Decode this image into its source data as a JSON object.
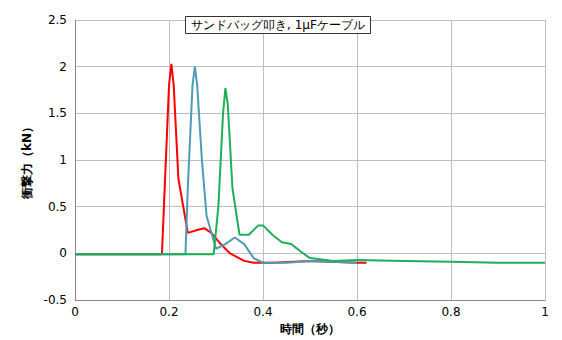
{
  "chart_data": {
    "type": "line",
    "title": "サンドバッグ叩き, 1μFケーブル",
    "x_label": "時間（秒）",
    "y_label": "衝撃力（kN）",
    "xlim": [
      0,
      1
    ],
    "xticks": [
      0,
      0.2,
      0.4,
      0.6,
      0.8,
      1
    ],
    "ylim": [
      -0.5,
      2.5
    ],
    "yticks": [
      -0.5,
      0,
      0.5,
      1,
      1.5,
      2,
      2.5
    ],
    "grid": true,
    "marker": "none",
    "line_style": "solid",
    "series": [
      {
        "color": "#ff0000",
        "x": [
          0,
          0.1,
          0.185,
          0.19,
          0.2,
          0.205,
          0.21,
          0.22,
          0.24,
          0.26,
          0.275,
          0.29,
          0.31,
          0.33,
          0.36,
          0.38,
          0.42,
          0.5,
          0.6,
          0.62
        ],
        "values": [
          -0.01,
          -0.01,
          -0.01,
          0.6,
          1.8,
          2.03,
          1.8,
          0.8,
          0.22,
          0.25,
          0.27,
          0.22,
          0.1,
          0.0,
          -0.08,
          -0.1,
          -0.1,
          -0.08,
          -0.1,
          -0.1
        ]
      },
      {
        "color": "#4e9bb5",
        "x": [
          0,
          0.235,
          0.24,
          0.25,
          0.255,
          0.26,
          0.27,
          0.28,
          0.3,
          0.32,
          0.34,
          0.36,
          0.38,
          0.4,
          0.45,
          0.5,
          0.6
        ],
        "values": [
          -0.01,
          -0.01,
          0.7,
          1.8,
          2.0,
          1.8,
          1.0,
          0.4,
          0.05,
          0.1,
          0.17,
          0.1,
          -0.05,
          -0.1,
          -0.1,
          -0.08,
          -0.1
        ]
      },
      {
        "color": "#1fae5a",
        "x": [
          0,
          0.295,
          0.305,
          0.315,
          0.32,
          0.325,
          0.335,
          0.35,
          0.37,
          0.39,
          0.4,
          0.42,
          0.44,
          0.46,
          0.48,
          0.5,
          0.55,
          0.6,
          0.7,
          0.8,
          0.9,
          1
        ],
        "values": [
          -0.01,
          -0.01,
          0.5,
          1.5,
          1.77,
          1.6,
          0.7,
          0.2,
          0.2,
          0.3,
          0.3,
          0.2,
          0.12,
          0.1,
          0.02,
          -0.05,
          -0.08,
          -0.07,
          -0.08,
          -0.09,
          -0.1,
          -0.1
        ]
      }
    ]
  }
}
